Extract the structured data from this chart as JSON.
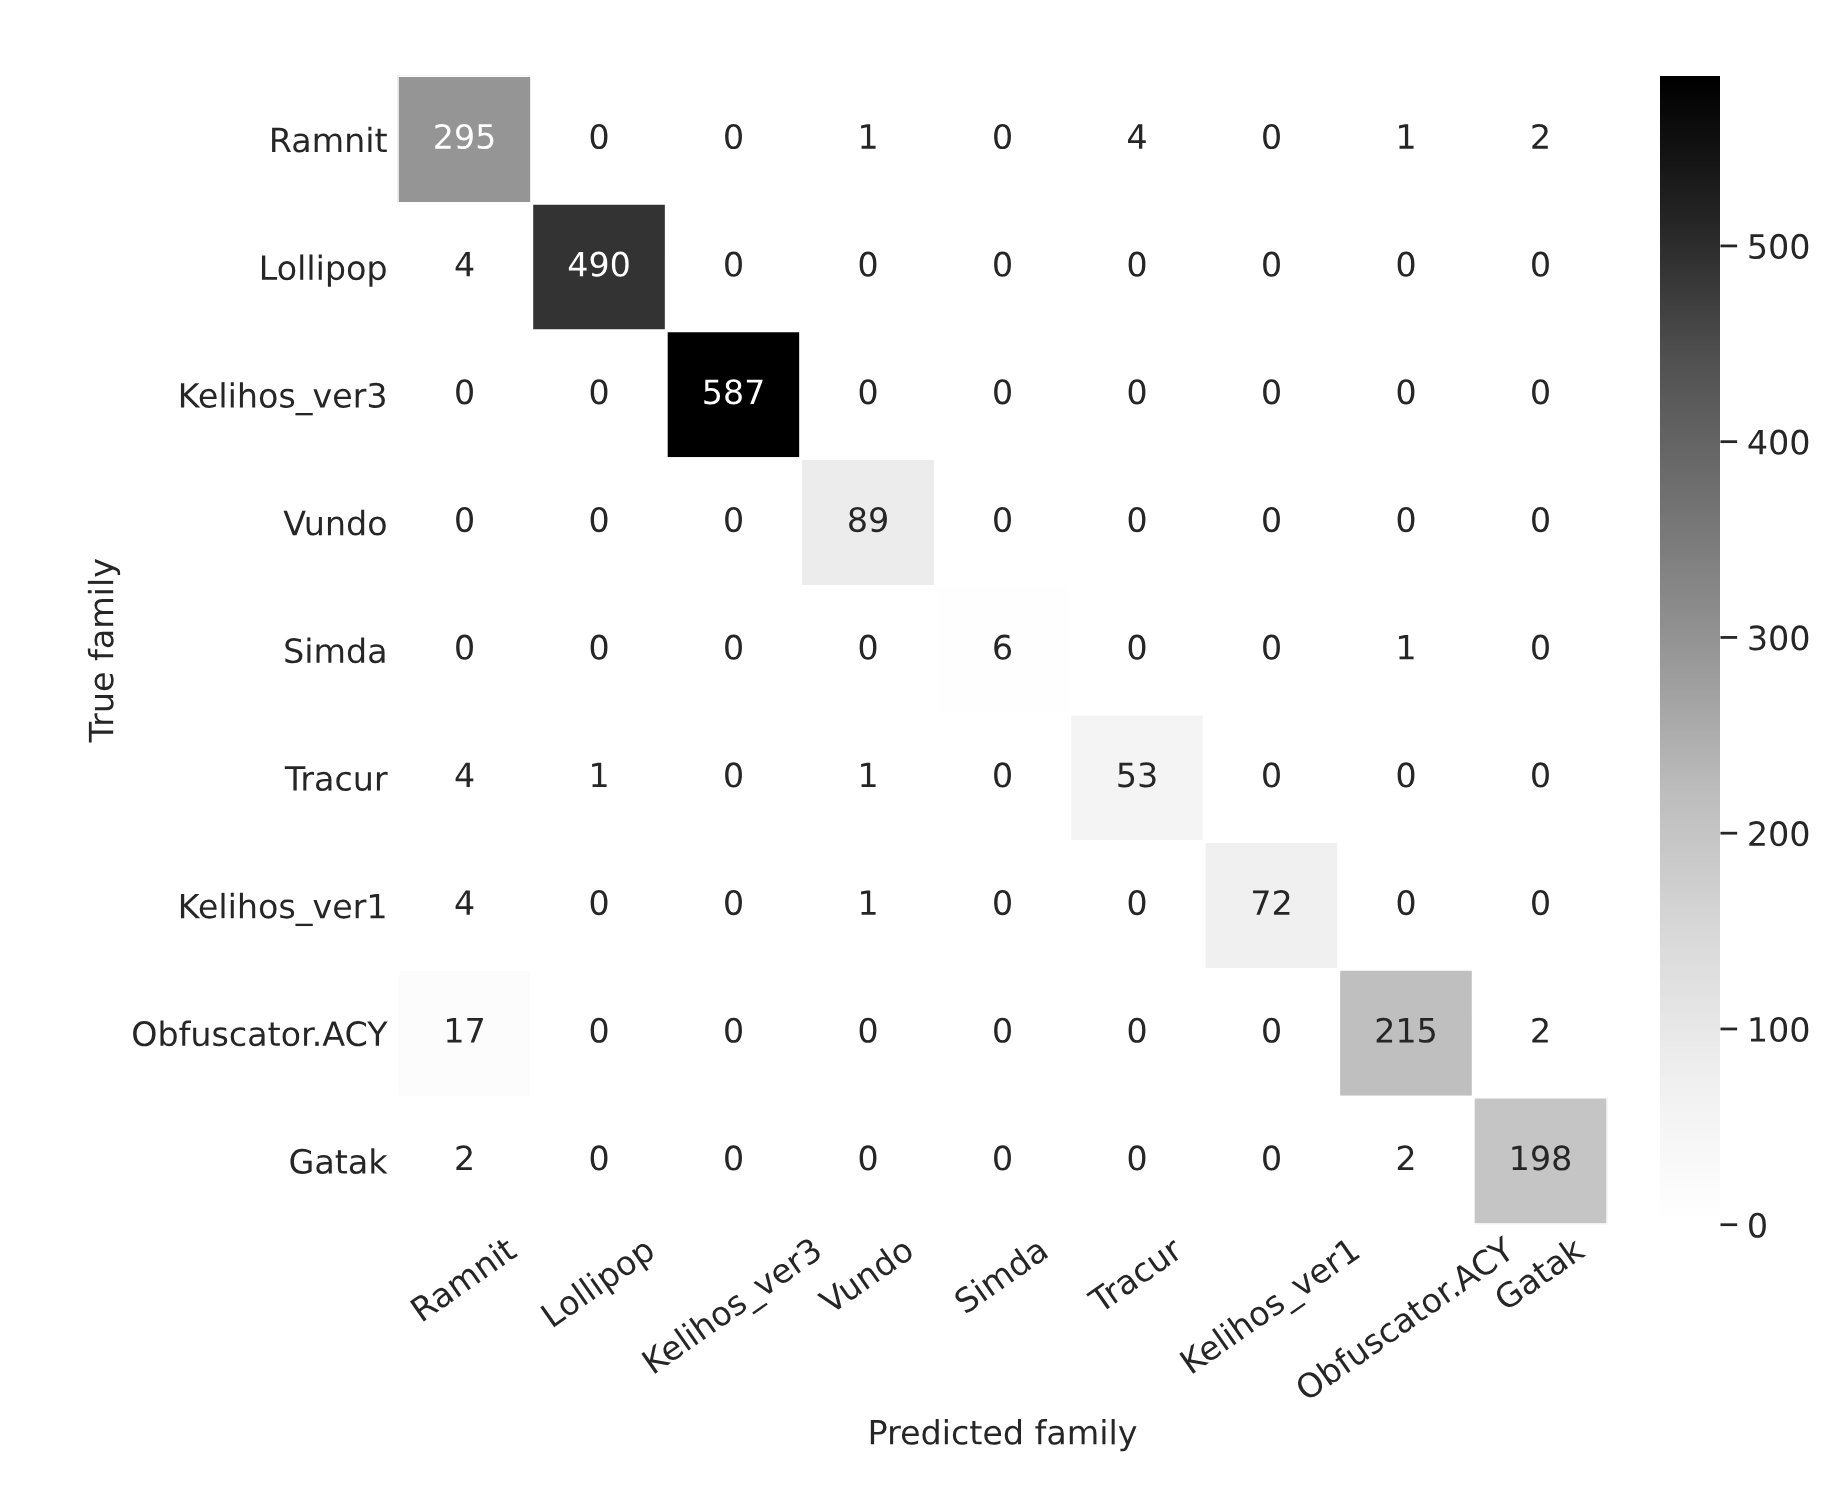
{
  "chart_data": {
    "type": "heatmap",
    "xlabel": "Predicted family",
    "ylabel": "True family",
    "categories": [
      "Ramnit",
      "Lollipop",
      "Kelihos_ver3",
      "Vundo",
      "Simda",
      "Tracur",
      "Kelihos_ver1",
      "Obfuscator.ACY",
      "Gatak"
    ],
    "y_categories": [
      "Ramnit",
      "Lollipop",
      "Kelihos_ver3",
      "Vundo",
      "Simda",
      "Tracur",
      "Kelihos_ver1",
      "Obfuscator.ACY",
      "Gatak"
    ],
    "cells": [
      [
        295,
        0,
        0,
        1,
        0,
        4,
        0,
        1,
        2
      ],
      [
        4,
        490,
        0,
        0,
        0,
        0,
        0,
        0,
        0
      ],
      [
        0,
        0,
        587,
        0,
        0,
        0,
        0,
        0,
        0
      ],
      [
        0,
        0,
        0,
        89,
        0,
        0,
        0,
        0,
        0
      ],
      [
        0,
        0,
        0,
        0,
        6,
        0,
        0,
        1,
        0
      ],
      [
        4,
        1,
        0,
        1,
        0,
        53,
        0,
        0,
        0
      ],
      [
        4,
        0,
        0,
        1,
        0,
        0,
        72,
        0,
        0
      ],
      [
        17,
        0,
        0,
        0,
        0,
        0,
        0,
        215,
        2
      ],
      [
        2,
        0,
        0,
        0,
        0,
        0,
        0,
        2,
        198
      ]
    ],
    "clim": [
      0,
      587
    ],
    "cticks": [
      0,
      100,
      200,
      300,
      400,
      500
    ],
    "data_labels": true
  }
}
